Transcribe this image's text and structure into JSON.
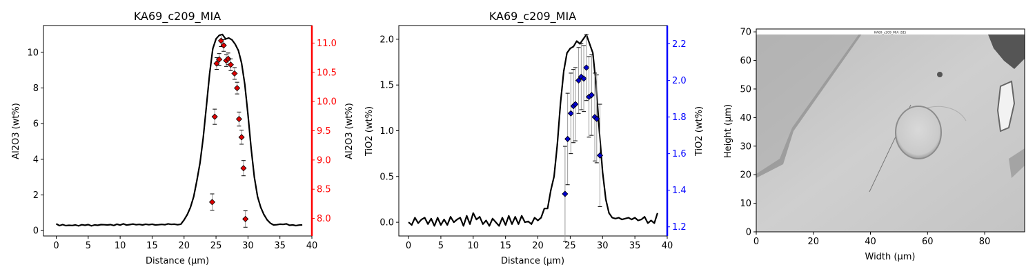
{
  "chart_data": [
    {
      "type": "line",
      "title": "KA69_c209_MIA",
      "xlabel": "Distance (µm)",
      "ylabel": "Al2O3 (wt%)",
      "y2label": "Al2O3 (wt%)",
      "xlim": [
        -2,
        40
      ],
      "ylim": [
        -0.3,
        11.5
      ],
      "y2lim": [
        7.7,
        11.3
      ],
      "xticks": [
        0,
        5,
        10,
        15,
        20,
        25,
        30,
        35,
        40
      ],
      "yticks": [
        0,
        2,
        4,
        6,
        8,
        10
      ],
      "y2ticks": [
        8.0,
        8.5,
        9.0,
        9.5,
        10.0,
        10.5,
        11.0
      ],
      "secondary_color": "#ff0000",
      "marker_color": "#dd0000",
      "grid": false,
      "series": [
        {
          "axis": "left",
          "kind": "line",
          "x": [
            0,
            0.5,
            1,
            1.5,
            2,
            2.5,
            3,
            3.5,
            4,
            4.5,
            5,
            5.5,
            6,
            6.5,
            7,
            7.5,
            8,
            8.5,
            9,
            9.5,
            10,
            10.5,
            11,
            11.5,
            12,
            12.5,
            13,
            13.5,
            14,
            14.5,
            15,
            15.5,
            16,
            16.5,
            17,
            17.5,
            18,
            18.5,
            19,
            19.5,
            20,
            20.5,
            21,
            21.5,
            22,
            22.5,
            23,
            23.5,
            24,
            24.5,
            25,
            25.5,
            26,
            26.5,
            27,
            27.5,
            28,
            28.5,
            29,
            29.5,
            30,
            30.5,
            31,
            31.5,
            32,
            32.5,
            33,
            33.5,
            34,
            34.5,
            35,
            35.5,
            36,
            36.5,
            37,
            37.5,
            38,
            38.5
          ],
          "y": [
            0.38,
            0.28,
            0.34,
            0.28,
            0.3,
            0.29,
            0.32,
            0.27,
            0.33,
            0.3,
            0.34,
            0.27,
            0.32,
            0.3,
            0.34,
            0.33,
            0.32,
            0.34,
            0.29,
            0.36,
            0.31,
            0.38,
            0.31,
            0.34,
            0.37,
            0.33,
            0.35,
            0.32,
            0.36,
            0.33,
            0.36,
            0.32,
            0.33,
            0.35,
            0.33,
            0.38,
            0.35,
            0.36,
            0.33,
            0.36,
            0.6,
            0.9,
            1.3,
            1.9,
            2.8,
            3.8,
            5.2,
            7.0,
            8.8,
            10.2,
            10.75,
            10.95,
            11.0,
            10.75,
            10.8,
            10.7,
            10.45,
            10.1,
            9.4,
            8.2,
            6.5,
            4.6,
            3.0,
            1.9,
            1.3,
            0.9,
            0.6,
            0.42,
            0.32,
            0.33,
            0.36,
            0.35,
            0.38,
            0.3,
            0.32,
            0.28,
            0.31,
            0.32
          ]
        },
        {
          "axis": "right",
          "kind": "scatter",
          "x": [
            24.4,
            24.8,
            25.1,
            25.5,
            25.8,
            26.2,
            26.6,
            26.9,
            27.3,
            27.9,
            28.3,
            28.6,
            29.0,
            29.3,
            29.6
          ],
          "y": [
            8.28,
            9.74,
            10.65,
            10.72,
            11.04,
            10.96,
            10.7,
            10.73,
            10.63,
            10.48,
            10.23,
            9.7,
            9.39,
            8.86,
            7.99
          ],
          "err": [
            0.14,
            0.13,
            0.1,
            0.1,
            0.1,
            0.1,
            0.1,
            0.1,
            0.1,
            0.1,
            0.1,
            0.12,
            0.12,
            0.13,
            0.14
          ]
        }
      ]
    },
    {
      "type": "line",
      "title": "KA69_c209_MIA",
      "xlabel": "Distance (µm)",
      "ylabel": "TiO2 (wt%)",
      "y2label": "TiO2 (wt%)",
      "xlim": [
        -1.5,
        40
      ],
      "ylim": [
        -0.15,
        2.15
      ],
      "y2lim": [
        1.15,
        2.3
      ],
      "xticks": [
        0,
        5,
        10,
        15,
        20,
        25,
        30,
        35,
        40
      ],
      "yticks": [
        0.0,
        0.5,
        1.0,
        1.5,
        2.0
      ],
      "y2ticks": [
        1.2,
        1.4,
        1.6,
        1.8,
        2.0,
        2.2
      ],
      "secondary_color": "#0000ff",
      "marker_color": "#0000cc",
      "grid": false,
      "series": [
        {
          "axis": "left",
          "kind": "line",
          "x": [
            0,
            0.5,
            1,
            1.5,
            2,
            2.5,
            3,
            3.5,
            4,
            4.5,
            5,
            5.5,
            6,
            6.5,
            7,
            7.5,
            8,
            8.5,
            9,
            9.5,
            10,
            10.5,
            11,
            11.5,
            12,
            12.5,
            13,
            13.5,
            14,
            14.5,
            15,
            15.5,
            16,
            16.5,
            17,
            17.5,
            18,
            18.5,
            19,
            19.5,
            20,
            20.5,
            21,
            21.5,
            22,
            22.5,
            23,
            23.5,
            24,
            24.5,
            25,
            25.5,
            26,
            26.5,
            27,
            27.5,
            28,
            28.5,
            29,
            29.5,
            30,
            30.5,
            31,
            31.5,
            32,
            32.5,
            33,
            33.5,
            34,
            34.5,
            35,
            35.5,
            36,
            36.5,
            37,
            37.5,
            38,
            38.5
          ],
          "y": [
            0.0,
            -0.03,
            0.05,
            -0.01,
            0.03,
            0.05,
            -0.02,
            0.04,
            -0.04,
            0.05,
            -0.03,
            0.03,
            -0.03,
            0.06,
            0.0,
            0.03,
            0.05,
            -0.04,
            0.07,
            -0.02,
            0.1,
            0.03,
            0.06,
            -0.02,
            0.02,
            -0.04,
            0.04,
            0.0,
            -0.04,
            0.05,
            -0.03,
            0.07,
            -0.02,
            0.06,
            -0.02,
            0.07,
            0.0,
            0.01,
            -0.02,
            0.05,
            0.02,
            0.05,
            0.15,
            0.15,
            0.35,
            0.5,
            0.85,
            1.3,
            1.65,
            1.85,
            1.9,
            1.92,
            1.98,
            1.95,
            2.0,
            2.05,
            1.95,
            1.85,
            1.5,
            1.0,
            0.55,
            0.25,
            0.1,
            0.05,
            0.04,
            0.05,
            0.03,
            0.04,
            0.05,
            0.03,
            0.05,
            0.02,
            0.03,
            0.06,
            -0.01,
            0.02,
            -0.01,
            0.1
          ]
        },
        {
          "axis": "right",
          "kind": "scatter",
          "x": [
            24.2,
            24.6,
            25.1,
            25.5,
            25.8,
            26.3,
            26.7,
            27.1,
            27.5,
            27.9,
            28.3,
            28.8,
            29.1,
            29.6
          ],
          "y": [
            1.38,
            1.68,
            1.82,
            1.86,
            1.87,
            2.0,
            2.02,
            2.01,
            2.07,
            1.91,
            1.92,
            1.8,
            1.79,
            1.59
          ],
          "err": [
            0.26,
            0.25,
            0.22,
            0.2,
            0.2,
            0.18,
            0.18,
            0.18,
            0.18,
            0.22,
            0.22,
            0.24,
            0.24,
            0.28
          ]
        }
      ]
    },
    {
      "type": "image",
      "xlabel": "Width (µm)",
      "ylabel": "Height (µm)",
      "xlim": [
        0,
        94
      ],
      "ylim": [
        0,
        71
      ],
      "xticks": [
        0,
        20,
        40,
        60,
        80
      ],
      "yticks": [
        0,
        10,
        20,
        30,
        40,
        50,
        60,
        70
      ],
      "image_caption": "KA69_c209_MIA (SE)"
    }
  ]
}
